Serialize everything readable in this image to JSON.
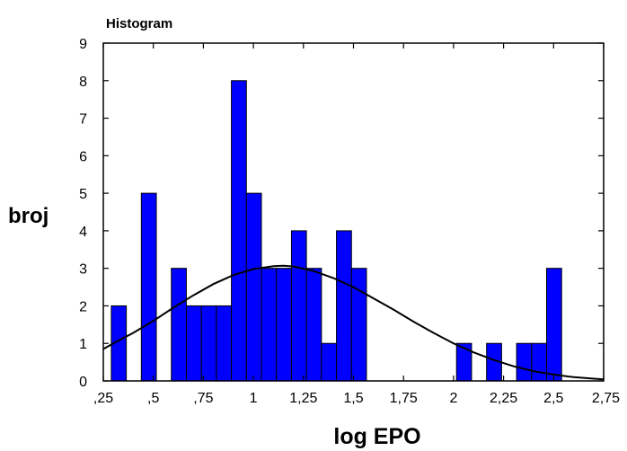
{
  "chart_data": {
    "type": "bar",
    "title": "Histogram",
    "xlabel": "log EPO",
    "ylabel": "broj",
    "xlim": [
      0.25,
      2.75
    ],
    "ylim": [
      0,
      9
    ],
    "x_tick_labels": [
      ",25",
      ",5",
      ",75",
      "1",
      "1,25",
      "1,5",
      "1,75",
      "2",
      "2,25",
      "2,5",
      "2,75"
    ],
    "y_tick_labels": [
      "0",
      "1",
      "2",
      "3",
      "4",
      "5",
      "6",
      "7",
      "8",
      "9"
    ],
    "bin_width": 0.075,
    "bins": [
      {
        "start": 0.29,
        "count": 2
      },
      {
        "start": 0.44,
        "count": 5
      },
      {
        "start": 0.59,
        "count": 3
      },
      {
        "start": 0.665,
        "count": 2
      },
      {
        "start": 0.74,
        "count": 2
      },
      {
        "start": 0.815,
        "count": 2
      },
      {
        "start": 0.89,
        "count": 8
      },
      {
        "start": 0.965,
        "count": 5
      },
      {
        "start": 1.04,
        "count": 3
      },
      {
        "start": 1.115,
        "count": 3
      },
      {
        "start": 1.19,
        "count": 4
      },
      {
        "start": 1.265,
        "count": 3
      },
      {
        "start": 1.34,
        "count": 1
      },
      {
        "start": 1.415,
        "count": 4
      },
      {
        "start": 1.49,
        "count": 3
      },
      {
        "start": 2.015,
        "count": 1
      },
      {
        "start": 2.165,
        "count": 1
      },
      {
        "start": 2.315,
        "count": 1
      },
      {
        "start": 2.39,
        "count": 1
      },
      {
        "start": 2.465,
        "count": 3
      }
    ],
    "normal_curve": {
      "x": [
        0.25,
        0.3,
        0.4,
        0.5,
        0.6,
        0.7,
        0.8,
        0.9,
        1.0,
        1.1,
        1.15,
        1.2,
        1.3,
        1.4,
        1.5,
        1.6,
        1.7,
        1.8,
        1.9,
        2.0,
        2.1,
        2.2,
        2.3,
        2.4,
        2.5,
        2.6,
        2.7,
        2.75
      ],
      "y": [
        0.85,
        1.0,
        1.28,
        1.6,
        1.95,
        2.28,
        2.58,
        2.82,
        2.98,
        3.06,
        3.07,
        3.05,
        2.93,
        2.74,
        2.5,
        2.2,
        1.9,
        1.58,
        1.28,
        1.0,
        0.76,
        0.56,
        0.39,
        0.26,
        0.17,
        0.1,
        0.06,
        0.04
      ]
    },
    "bar_color": "#0000ff",
    "bar_edge_color": "#000000",
    "curve_color": "#000000",
    "grid": false
  }
}
